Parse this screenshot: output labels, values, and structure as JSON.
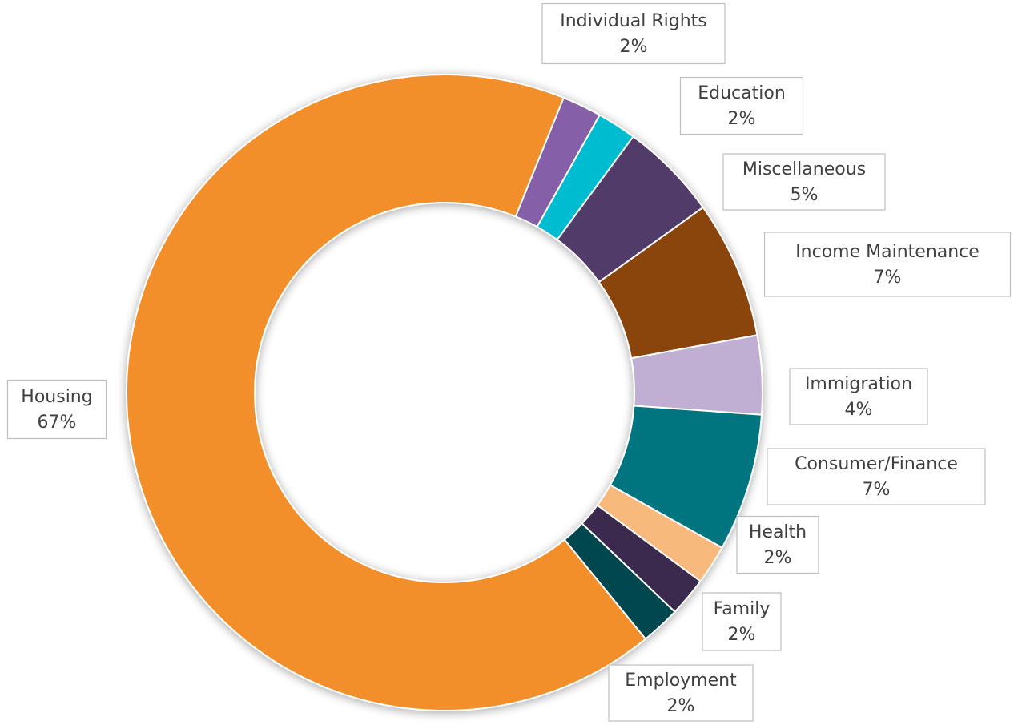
{
  "chart_data": {
    "type": "donut",
    "categories": [
      "Individual Rights",
      "Education",
      "Miscellaneous",
      "Income Maintenance",
      "Immigration",
      "Consumer/Finance",
      "Health",
      "Family",
      "Employment",
      "Housing"
    ],
    "values": [
      2,
      2,
      5,
      7,
      4,
      7,
      2,
      2,
      2,
      67
    ],
    "value_labels": [
      "2%",
      "2%",
      "5%",
      "7%",
      "4%",
      "7%",
      "2%",
      "2%",
      "2%",
      "67%"
    ],
    "colors": [
      "#8560a8",
      "#00bcd0",
      "#513a68",
      "#8a4507",
      "#c0afd3",
      "#027580",
      "#f7b97b",
      "#3b2a4d",
      "#004650",
      "#f28f2c"
    ]
  }
}
